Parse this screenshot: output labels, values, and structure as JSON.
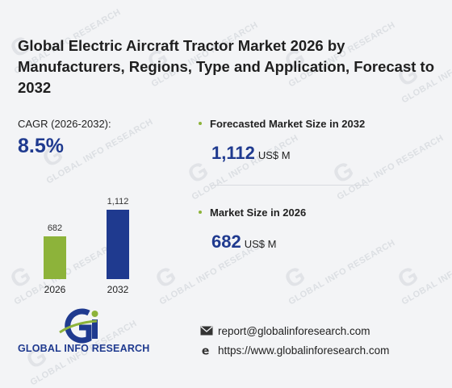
{
  "title": "Global Electric Aircraft Tractor Market 2026 by Manufacturers, Regions, Type and Application, Forecast to 2032",
  "cagr": {
    "label": "CAGR (2026-2032):",
    "value": "8.5%"
  },
  "forecast": {
    "label": "Forecasted Market Size in 2032",
    "value": "1,112",
    "unit": "US$ M"
  },
  "market": {
    "label": "Market Size in 2026",
    "value": "682",
    "unit": "US$ M"
  },
  "watermark": "GLOBAL INFO RESEARCH",
  "logo": {
    "text": "GLOBAL INFO RESEARCH"
  },
  "contact": {
    "email": "report@globalinforesearch.com",
    "website": "https://www.globalinforesearch.com"
  },
  "colors": {
    "accent": "#1f3a8f",
    "bar_2026": "#8db33a",
    "bar_2032": "#1f3a8f"
  },
  "chart_data": {
    "type": "bar",
    "categories": [
      "2026",
      "2032"
    ],
    "values": [
      682,
      1112
    ],
    "data_labels": [
      "682",
      "1,112"
    ],
    "ylim": [
      0,
      1112
    ]
  }
}
